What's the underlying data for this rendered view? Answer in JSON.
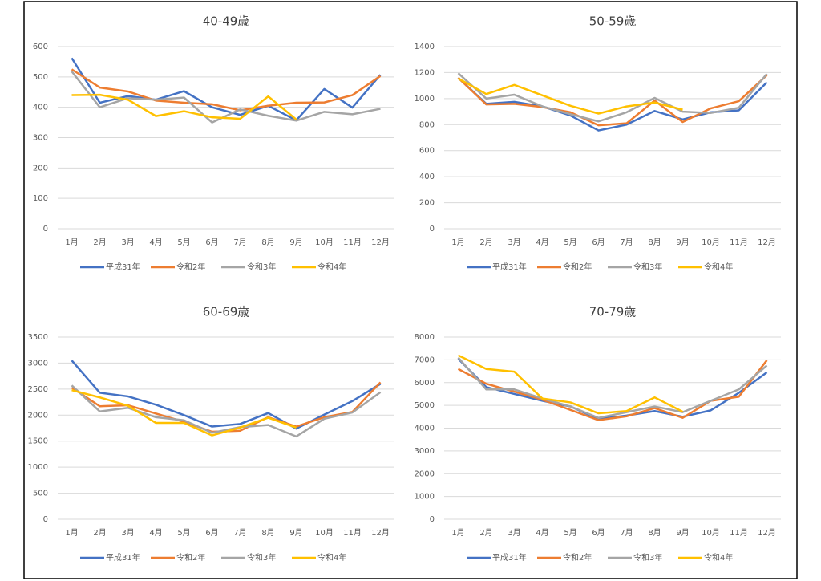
{
  "chart_data": [
    {
      "type": "line",
      "title": "40-49歳",
      "categories": [
        "1月",
        "2月",
        "3月",
        "4月",
        "5月",
        "6月",
        "7月",
        "8月",
        "9月",
        "10月",
        "11月",
        "12月"
      ],
      "ylim": [
        0,
        600
      ],
      "yticks": [
        0,
        100,
        200,
        300,
        400,
        500,
        600
      ],
      "grid": true,
      "legend": "bottom",
      "series": [
        {
          "name": "平成31年",
          "color": "#4472c4",
          "values": [
            562,
            415,
            437,
            425,
            453,
            400,
            375,
            405,
            357,
            460,
            399,
            507
          ]
        },
        {
          "name": "令和2年",
          "color": "#ed7d31",
          "values": [
            525,
            465,
            452,
            422,
            415,
            410,
            390,
            405,
            415,
            416,
            440,
            503
          ]
        },
        {
          "name": "令和3年",
          "color": "#a5a5a5",
          "values": [
            518,
            400,
            430,
            425,
            432,
            350,
            393,
            372,
            356,
            385,
            377,
            395
          ]
        },
        {
          "name": "令和4年",
          "color": "#ffc000",
          "values": [
            440,
            441,
            425,
            371,
            387,
            367,
            362,
            436,
            360,
            null,
            null,
            null
          ]
        }
      ]
    },
    {
      "type": "line",
      "title": "50-59歳",
      "categories": [
        "1月",
        "2月",
        "3月",
        "4月",
        "5月",
        "6月",
        "7月",
        "8月",
        "9月",
        "10月",
        "11月",
        "12月"
      ],
      "ylim": [
        0,
        1400
      ],
      "yticks": [
        0,
        200,
        400,
        600,
        800,
        1000,
        1200,
        1400
      ],
      "grid": true,
      "legend": "bottom",
      "series": [
        {
          "name": "平成31年",
          "color": "#4472c4",
          "values": [
            1160,
            960,
            975,
            940,
            870,
            755,
            800,
            905,
            840,
            895,
            910,
            1125
          ]
        },
        {
          "name": "令和2年",
          "color": "#ed7d31",
          "values": [
            1160,
            955,
            960,
            935,
            895,
            795,
            810,
            985,
            820,
            925,
            980,
            1180
          ]
        },
        {
          "name": "令和3年",
          "color": "#a5a5a5",
          "values": [
            1195,
            1000,
            1030,
            940,
            880,
            825,
            895,
            1005,
            900,
            890,
            930,
            1190
          ]
        },
        {
          "name": "令和4年",
          "color": "#ffc000",
          "values": [
            1155,
            1035,
            1105,
            1025,
            945,
            885,
            940,
            970,
            915,
            null,
            null,
            null
          ]
        }
      ]
    },
    {
      "type": "line",
      "title": "60-69歳",
      "categories": [
        "1月",
        "2月",
        "3月",
        "4月",
        "5月",
        "6月",
        "7月",
        "8月",
        "9月",
        "10月",
        "11月",
        "12月"
      ],
      "ylim": [
        0,
        3500
      ],
      "yticks": [
        0,
        500,
        1000,
        1500,
        2000,
        2500,
        3000,
        3500
      ],
      "grid": true,
      "legend": "bottom",
      "series": [
        {
          "name": "平成31年",
          "color": "#4472c4",
          "values": [
            3050,
            2430,
            2360,
            2200,
            2000,
            1780,
            1830,
            2040,
            1740,
            2010,
            2270,
            2600
          ]
        },
        {
          "name": "令和2年",
          "color": "#ed7d31",
          "values": [
            2530,
            2170,
            2190,
            2030,
            1870,
            1680,
            1700,
            1960,
            1780,
            1960,
            2060,
            2630
          ]
        },
        {
          "name": "令和3年",
          "color": "#a5a5a5",
          "values": [
            2570,
            2070,
            2140,
            1960,
            1900,
            1660,
            1770,
            1810,
            1590,
            1930,
            2050,
            2440
          ]
        },
        {
          "name": "令和4年",
          "color": "#ffc000",
          "values": [
            2480,
            2340,
            2180,
            1850,
            1850,
            1610,
            1760,
            1950,
            1760,
            null,
            null,
            null
          ]
        }
      ]
    },
    {
      "type": "line",
      "title": "70-79歳",
      "categories": [
        "1月",
        "2月",
        "3月",
        "4月",
        "5月",
        "6月",
        "7月",
        "8月",
        "9月",
        "10月",
        "11月",
        "12月"
      ],
      "ylim": [
        0,
        8000
      ],
      "yticks": [
        0,
        1000,
        2000,
        3000,
        4000,
        5000,
        6000,
        7000,
        8000
      ],
      "grid": true,
      "legend": "bottom",
      "series": [
        {
          "name": "平成31年",
          "color": "#4472c4",
          "values": [
            7050,
            5800,
            5500,
            5200,
            4950,
            4400,
            4550,
            4750,
            4500,
            4780,
            5550,
            6450
          ]
        },
        {
          "name": "令和2年",
          "color": "#ed7d31",
          "values": [
            6600,
            5950,
            5600,
            5250,
            4800,
            4350,
            4520,
            4880,
            4450,
            5200,
            5380,
            6980
          ]
        },
        {
          "name": "令和3年",
          "color": "#a5a5a5",
          "values": [
            7100,
            5700,
            5700,
            5300,
            4950,
            4450,
            4700,
            4950,
            4700,
            5200,
            5700,
            6750
          ]
        },
        {
          "name": "令和4年",
          "color": "#ffc000",
          "values": [
            7200,
            6600,
            6480,
            5300,
            5130,
            4650,
            4750,
            5350,
            4720,
            null,
            null,
            null
          ]
        }
      ]
    }
  ]
}
